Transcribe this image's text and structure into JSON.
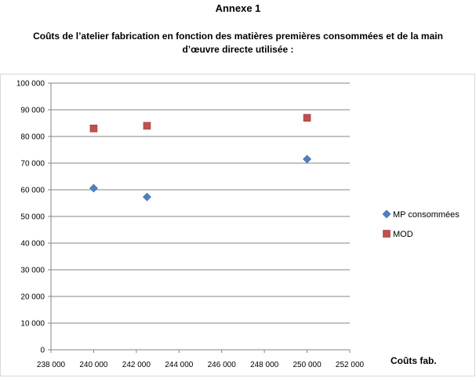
{
  "header": {
    "annex": "Annexe 1",
    "title_line1": "Coûts de l’atelier fabrication en fonction des matières premières consommées et de la main",
    "title_line2": "d’œuvre directe utilisée :"
  },
  "chart_data": {
    "type": "scatter",
    "title": "Coûts de l’atelier fabrication en fonction des matières premières consommées et de la main d’œuvre directe utilisée :",
    "xlabel": "Coûts fab.",
    "ylabel": "",
    "xlim": [
      238000,
      252000
    ],
    "ylim": [
      0,
      100000
    ],
    "xticks": [
      "238 000",
      "240 000",
      "242 000",
      "244 000",
      "246 000",
      "248 000",
      "250 000",
      "252 000"
    ],
    "yticks": [
      "0",
      "10 000",
      "20 000",
      "30 000",
      "40 000",
      "50 000",
      "60 000",
      "70 000",
      "80 000",
      "90 000",
      "100 000"
    ],
    "grid": true,
    "legend_position": "right",
    "series": [
      {
        "name": "MP consommées",
        "marker": "diamond",
        "color": "#4f81bd",
        "points": [
          {
            "x": 240000,
            "y": 60600
          },
          {
            "x": 242500,
            "y": 57300
          },
          {
            "x": 250000,
            "y": 71500
          }
        ]
      },
      {
        "name": "MOD",
        "marker": "square",
        "color": "#c0504d",
        "points": [
          {
            "x": 240000,
            "y": 83000
          },
          {
            "x": 242500,
            "y": 84000
          },
          {
            "x": 250000,
            "y": 87000
          }
        ]
      }
    ]
  }
}
